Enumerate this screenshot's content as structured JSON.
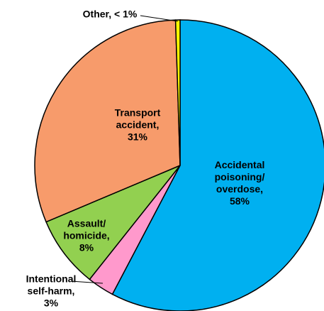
{
  "chart_data": {
    "type": "pie",
    "categories": [
      "Accidental\npoisoning/\noverdose,",
      "Intentional\nself-harm,",
      "Assault/\nhomicide,",
      "Transport\naccident,",
      "Other,"
    ],
    "values": [
      58,
      3,
      8,
      31,
      0.5
    ],
    "value_labels": [
      "58%",
      "3%",
      "8%",
      "31%",
      "< 1%"
    ],
    "colors": [
      "#00b0f0",
      "#ff99cc",
      "#92d050",
      "#f79b6b",
      "#ffff00"
    ]
  }
}
